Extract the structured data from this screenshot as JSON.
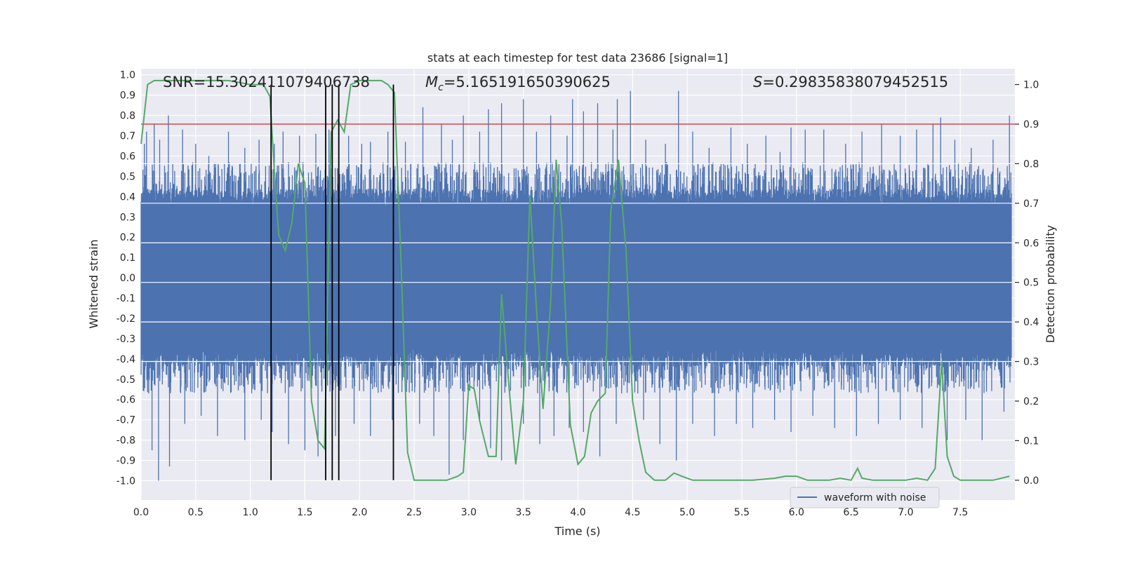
{
  "chart_data": {
    "type": "line",
    "title": "stats at each timestep for test data 23686 [signal=1]",
    "xlabel": "Time (s)",
    "ylabel_left": "Whitened strain",
    "ylabel_right": "Detection probability",
    "xlim": [
      0.0,
      8.0
    ],
    "ylim_left": [
      -1.095,
      1.03
    ],
    "ylim_right": [
      -0.05,
      1.04
    ],
    "x_ticks": [
      "0.0",
      "0.5",
      "1.0",
      "1.5",
      "2.0",
      "2.5",
      "3.0",
      "3.5",
      "4.0",
      "4.5",
      "5.0",
      "5.5",
      "6.0",
      "6.5",
      "7.0",
      "7.5"
    ],
    "y_left_ticks": [
      "1.0",
      "0.9",
      "0.8",
      "0.7",
      "0.6",
      "0.5",
      "0.4",
      "0.3",
      "0.2",
      "0.1",
      "0.0",
      "-0.1",
      "-0.2",
      "-0.3",
      "-0.4",
      "-0.5",
      "-0.6",
      "-0.7",
      "-0.8",
      "-0.9",
      "-1.0"
    ],
    "y_right_ticks": [
      "1.0",
      "0.9",
      "0.8",
      "0.7",
      "0.6",
      "0.5",
      "0.4",
      "0.3",
      "0.2",
      "0.1",
      "0.0"
    ],
    "annotations": {
      "snr": "SNR=15.302411079406738",
      "mc_symbol": "M",
      "mc_sub": "c",
      "mc_value": "=5.165191650390625",
      "s_symbol": "S",
      "s_value": "=0.29835838079452515"
    },
    "threshold_line": {
      "axis": "right",
      "y": 0.9,
      "color": "#c44e52"
    },
    "vertical_lines_x": [
      1.19,
      1.69,
      1.75,
      1.81,
      2.31
    ],
    "legend": {
      "label": "waveform with noise",
      "location": "lower-right"
    },
    "series": [
      {
        "name": "waveform with noise",
        "axis": "left",
        "color": "#4c72b0",
        "description": "dense noisy strain; envelope ~±0.35 with spikes to ~±0.92",
        "band": [
          -0.35,
          0.35
        ],
        "spikes": [
          [
            0.03,
            0.66
          ],
          [
            0.05,
            0.72
          ],
          [
            0.12,
            0.76
          ],
          [
            0.17,
            0.68
          ],
          [
            0.25,
            0.8
          ],
          [
            0.38,
            0.73
          ],
          [
            0.5,
            0.66
          ],
          [
            0.62,
            0.6
          ],
          [
            0.8,
            0.72
          ],
          [
            0.95,
            0.64
          ],
          [
            1.08,
            0.68
          ],
          [
            1.22,
            0.66
          ],
          [
            1.3,
            0.72
          ],
          [
            1.45,
            0.7
          ],
          [
            1.6,
            0.71
          ],
          [
            1.72,
            0.73
          ],
          [
            1.9,
            0.7
          ],
          [
            2.02,
            0.66
          ],
          [
            2.1,
            0.67
          ],
          [
            2.26,
            0.72
          ],
          [
            2.42,
            0.67
          ],
          [
            2.58,
            0.84
          ],
          [
            2.75,
            0.76
          ],
          [
            2.85,
            0.68
          ],
          [
            2.95,
            0.8
          ],
          [
            3.1,
            0.72
          ],
          [
            3.18,
            0.83
          ],
          [
            3.3,
            0.86
          ],
          [
            3.5,
            0.88
          ],
          [
            3.62,
            0.72
          ],
          [
            3.75,
            0.8
          ],
          [
            3.9,
            0.7
          ],
          [
            3.95,
            0.88
          ],
          [
            4.05,
            0.82
          ],
          [
            4.18,
            0.86
          ],
          [
            4.32,
            0.73
          ],
          [
            4.36,
            0.88
          ],
          [
            4.48,
            0.92
          ],
          [
            4.62,
            0.68
          ],
          [
            4.8,
            0.66
          ],
          [
            4.92,
            0.92
          ],
          [
            5.05,
            0.72
          ],
          [
            5.2,
            0.64
          ],
          [
            5.4,
            0.74
          ],
          [
            5.55,
            0.66
          ],
          [
            5.72,
            0.7
          ],
          [
            5.85,
            0.62
          ],
          [
            5.95,
            0.74
          ],
          [
            6.08,
            0.73
          ],
          [
            6.25,
            0.73
          ],
          [
            6.45,
            0.66
          ],
          [
            6.6,
            0.72
          ],
          [
            6.78,
            0.76
          ],
          [
            6.95,
            0.7
          ],
          [
            7.1,
            0.73
          ],
          [
            7.25,
            0.76
          ],
          [
            7.32,
            0.79
          ],
          [
            7.45,
            0.68
          ],
          [
            7.6,
            0.64
          ],
          [
            7.8,
            0.68
          ],
          [
            7.95,
            0.8
          ],
          [
            0.1,
            -0.85
          ],
          [
            0.16,
            -1.0
          ],
          [
            0.26,
            -0.93
          ],
          [
            0.4,
            -0.72
          ],
          [
            0.55,
            -0.68
          ],
          [
            0.7,
            -0.78
          ],
          [
            0.95,
            -0.8
          ],
          [
            1.1,
            -0.7
          ],
          [
            1.2,
            -0.76
          ],
          [
            1.35,
            -0.82
          ],
          [
            1.5,
            -0.85
          ],
          [
            1.62,
            -0.88
          ],
          [
            1.78,
            -0.78
          ],
          [
            1.95,
            -0.72
          ],
          [
            2.1,
            -0.78
          ],
          [
            2.3,
            -0.7
          ],
          [
            2.55,
            -0.72
          ],
          [
            2.68,
            -0.78
          ],
          [
            2.82,
            -0.97
          ],
          [
            2.95,
            -0.8
          ],
          [
            3.1,
            -0.7
          ],
          [
            3.2,
            -0.84
          ],
          [
            3.3,
            -0.9
          ],
          [
            3.5,
            -0.72
          ],
          [
            3.65,
            -0.82
          ],
          [
            3.78,
            -0.78
          ],
          [
            3.92,
            -0.74
          ],
          [
            4.05,
            -0.76
          ],
          [
            4.2,
            -0.88
          ],
          [
            4.35,
            -0.72
          ],
          [
            4.6,
            -0.7
          ],
          [
            4.75,
            -0.82
          ],
          [
            4.9,
            -0.9
          ],
          [
            5.05,
            -0.72
          ],
          [
            5.25,
            -0.78
          ],
          [
            5.45,
            -0.72
          ],
          [
            5.6,
            -0.74
          ],
          [
            5.8,
            -0.7
          ],
          [
            5.95,
            -0.76
          ],
          [
            6.15,
            -0.68
          ],
          [
            6.35,
            -0.74
          ],
          [
            6.55,
            -0.78
          ],
          [
            6.75,
            -0.72
          ],
          [
            6.95,
            -0.7
          ],
          [
            7.15,
            -0.74
          ],
          [
            7.38,
            -0.8
          ],
          [
            7.55,
            -0.7
          ],
          [
            7.7,
            -0.8
          ],
          [
            7.9,
            -0.66
          ]
        ]
      },
      {
        "name": "detection probability",
        "axis": "right",
        "color": "#55a868",
        "x": [
          0.0,
          0.06,
          0.12,
          0.2,
          0.3,
          0.4,
          0.5,
          0.6,
          0.7,
          0.8,
          0.9,
          1.0,
          1.06,
          1.12,
          1.18,
          1.22,
          1.26,
          1.32,
          1.38,
          1.44,
          1.5,
          1.56,
          1.62,
          1.68,
          1.74,
          1.8,
          1.86,
          1.92,
          2.0,
          2.1,
          2.2,
          2.26,
          2.32,
          2.38,
          2.44,
          2.5,
          2.56,
          2.62,
          2.7,
          2.8,
          2.9,
          2.95,
          3.0,
          3.05,
          3.1,
          3.18,
          3.25,
          3.3,
          3.37,
          3.43,
          3.5,
          3.56,
          3.62,
          3.68,
          3.75,
          3.8,
          3.85,
          3.93,
          4.0,
          4.06,
          4.12,
          4.18,
          4.25,
          4.3,
          4.37,
          4.44,
          4.5,
          4.56,
          4.62,
          4.7,
          4.8,
          4.88,
          4.95,
          5.05,
          5.2,
          5.4,
          5.6,
          5.8,
          5.9,
          6.0,
          6.1,
          6.2,
          6.3,
          6.4,
          6.5,
          6.56,
          6.6,
          6.7,
          6.8,
          6.9,
          7.0,
          7.1,
          7.2,
          7.27,
          7.33,
          7.38,
          7.44,
          7.5,
          7.6,
          7.7,
          7.8,
          7.95
        ],
        "y": [
          0.85,
          1.0,
          1.01,
          1.01,
          1.01,
          1.01,
          1.01,
          1.01,
          1.01,
          1.01,
          1.005,
          1.0,
          1.0,
          1.0,
          0.97,
          0.78,
          0.62,
          0.58,
          0.65,
          0.8,
          0.75,
          0.2,
          0.1,
          0.08,
          0.88,
          0.91,
          0.88,
          1.0,
          1.01,
          1.01,
          1.01,
          1.0,
          0.98,
          0.55,
          0.07,
          0.0,
          0.0,
          0.0,
          0.0,
          0.0,
          0.01,
          0.02,
          0.24,
          0.23,
          0.15,
          0.06,
          0.06,
          0.47,
          0.23,
          0.04,
          0.2,
          0.72,
          0.43,
          0.18,
          0.45,
          0.81,
          0.65,
          0.14,
          0.04,
          0.06,
          0.17,
          0.2,
          0.22,
          0.68,
          0.81,
          0.58,
          0.2,
          0.1,
          0.02,
          0.0,
          0.0,
          0.018,
          0.01,
          0.0,
          0.0,
          0.0,
          0.0,
          0.005,
          0.01,
          0.01,
          0.0,
          0.0,
          0.0,
          0.005,
          0.0,
          0.03,
          0.005,
          0.0,
          0.0,
          0.0,
          0.0,
          0.005,
          0.0,
          0.03,
          0.3,
          0.06,
          0.01,
          0.0,
          0.0,
          0.0,
          0.0,
          0.01
        ]
      }
    ]
  }
}
